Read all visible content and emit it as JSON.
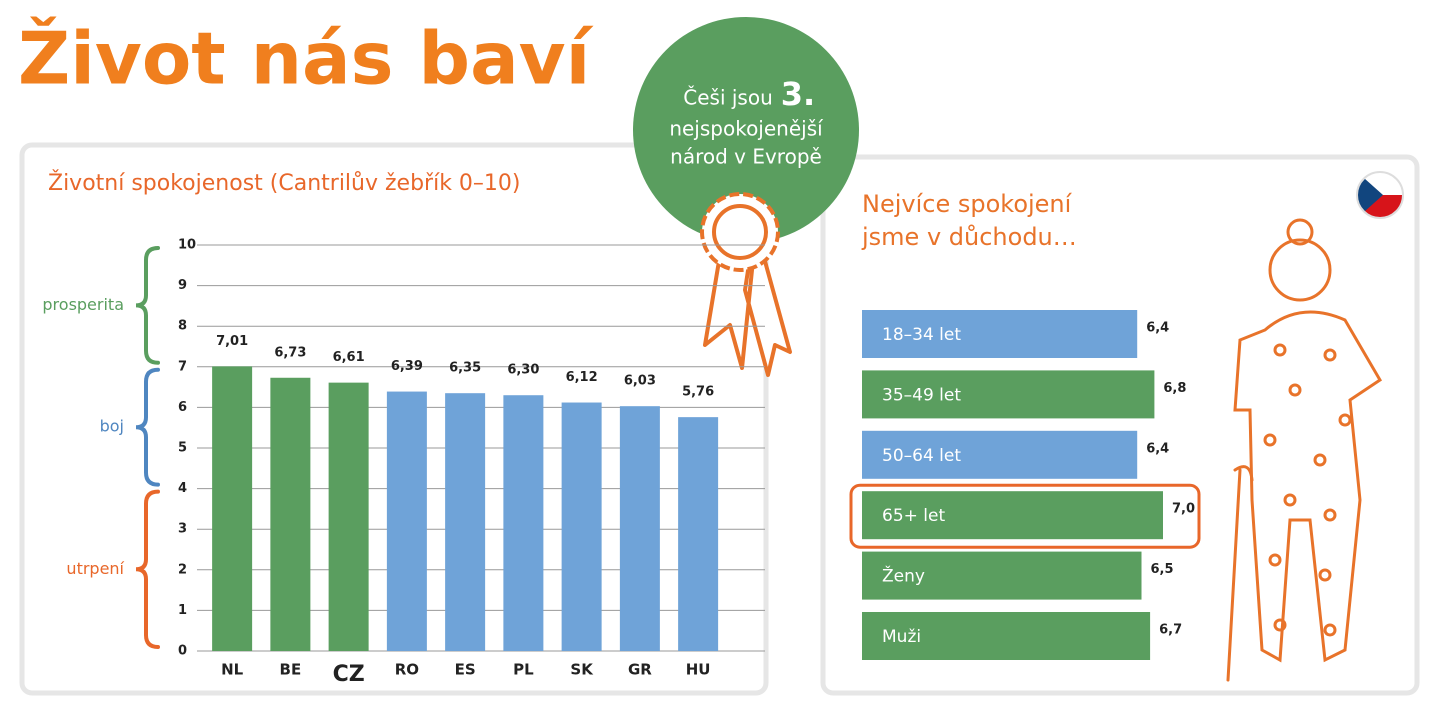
{
  "header": {
    "title": "Život nás baví",
    "badge": {
      "line1": "Češi jsou",
      "rank": "3.",
      "line2": "nejspokojenější",
      "line3": "národ v Evropě"
    }
  },
  "chart_data": [
    {
      "type": "bar",
      "title": "Životní spokojenost (Cantrilův žebřík 0–10)",
      "categories": [
        "NL",
        "BE",
        "CZ",
        "RO",
        "ES",
        "PL",
        "SK",
        "GR",
        "HU"
      ],
      "values": [
        7.01,
        6.73,
        6.61,
        6.39,
        6.35,
        6.3,
        6.12,
        6.03,
        5.76
      ],
      "value_labels": [
        "7,01",
        "6,73",
        "6,61",
        "6,39",
        "6,35",
        "6,30",
        "6,12",
        "6,03",
        "5,76"
      ],
      "colors": [
        "#5a9e5f",
        "#5a9e5f",
        "#5a9e5f",
        "#6fa3d8",
        "#6fa3d8",
        "#6fa3d8",
        "#6fa3d8",
        "#6fa3d8",
        "#6fa3d8"
      ],
      "emphasis": "CZ",
      "ylim": [
        0,
        10
      ],
      "yticks": [
        0,
        1,
        2,
        3,
        4,
        5,
        6,
        7,
        8,
        9,
        10
      ],
      "grid": true,
      "bands": [
        {
          "label": "prosperita",
          "range": [
            7,
            10
          ],
          "color": "#5a9e5f"
        },
        {
          "label": "boj",
          "range": [
            4,
            7
          ],
          "color": "#4f86c0"
        },
        {
          "label": "utrpení",
          "range": [
            0,
            4
          ],
          "color": "#e8672a"
        }
      ]
    },
    {
      "type": "hbar",
      "title": "Nejvíce spokojení jsme v důchodu…",
      "categories": [
        "18–34 let",
        "35–49 let",
        "50–64 let",
        "65+ let",
        "Ženy",
        "Muži"
      ],
      "values": [
        6.4,
        6.8,
        6.4,
        7.0,
        6.5,
        6.7
      ],
      "value_labels": [
        "6,4",
        "6,8",
        "6,4",
        "7,0",
        "6,5",
        "6,7"
      ],
      "colors": [
        "#6fa3d8",
        "#5a9e5f",
        "#6fa3d8",
        "#5a9e5f",
        "#5a9e5f",
        "#5a9e5f"
      ],
      "highlight": "65+ let",
      "xlim": [
        0,
        8
      ]
    }
  ]
}
